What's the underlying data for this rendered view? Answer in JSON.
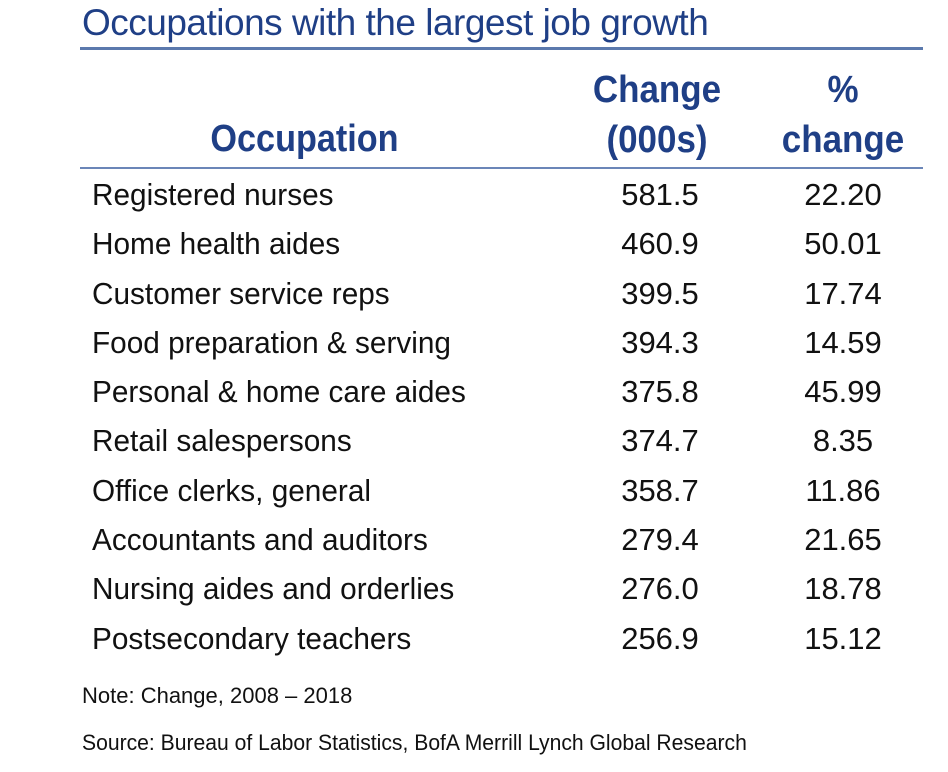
{
  "chart_data": {
    "type": "table",
    "title": "Occupations with the largest job growth",
    "columns": [
      "Occupation",
      "Change (000s)",
      "% change"
    ],
    "header": {
      "occupation": "Occupation",
      "change_line1": "Change",
      "change_line2": "(000s)",
      "pct_line1": "%",
      "pct_line2": "change"
    },
    "rows": [
      {
        "occupation": "Registered nurses",
        "change": "581.5",
        "pct": "22.20"
      },
      {
        "occupation": "Home health aides",
        "change": "460.9",
        "pct": "50.01"
      },
      {
        "occupation": "Customer service reps",
        "change": "399.5",
        "pct": "17.74"
      },
      {
        "occupation": "Food preparation & serving",
        "change": "394.3",
        "pct": "14.59"
      },
      {
        "occupation": "Personal & home care aides",
        "change": "375.8",
        "pct": "45.99"
      },
      {
        "occupation": "Retail salespersons",
        "change": "374.7",
        "pct": "8.35"
      },
      {
        "occupation": "Office clerks, general",
        "change": "358.7",
        "pct": "11.86"
      },
      {
        "occupation": "Accountants and auditors",
        "change": "279.4",
        "pct": "21.65"
      },
      {
        "occupation": "Nursing aides and orderlies",
        "change": "276.0",
        "pct": "18.78"
      },
      {
        "occupation": "Postsecondary teachers",
        "change": "256.9",
        "pct": "15.12"
      }
    ],
    "note": "Note: Change, 2008 – 2018",
    "source": "Source: Bureau of Labor Statistics, BofA Merrill Lynch Global Research"
  },
  "colors": {
    "title": "#1f3f86",
    "rule": "#5b79ad",
    "text": "#111111"
  }
}
